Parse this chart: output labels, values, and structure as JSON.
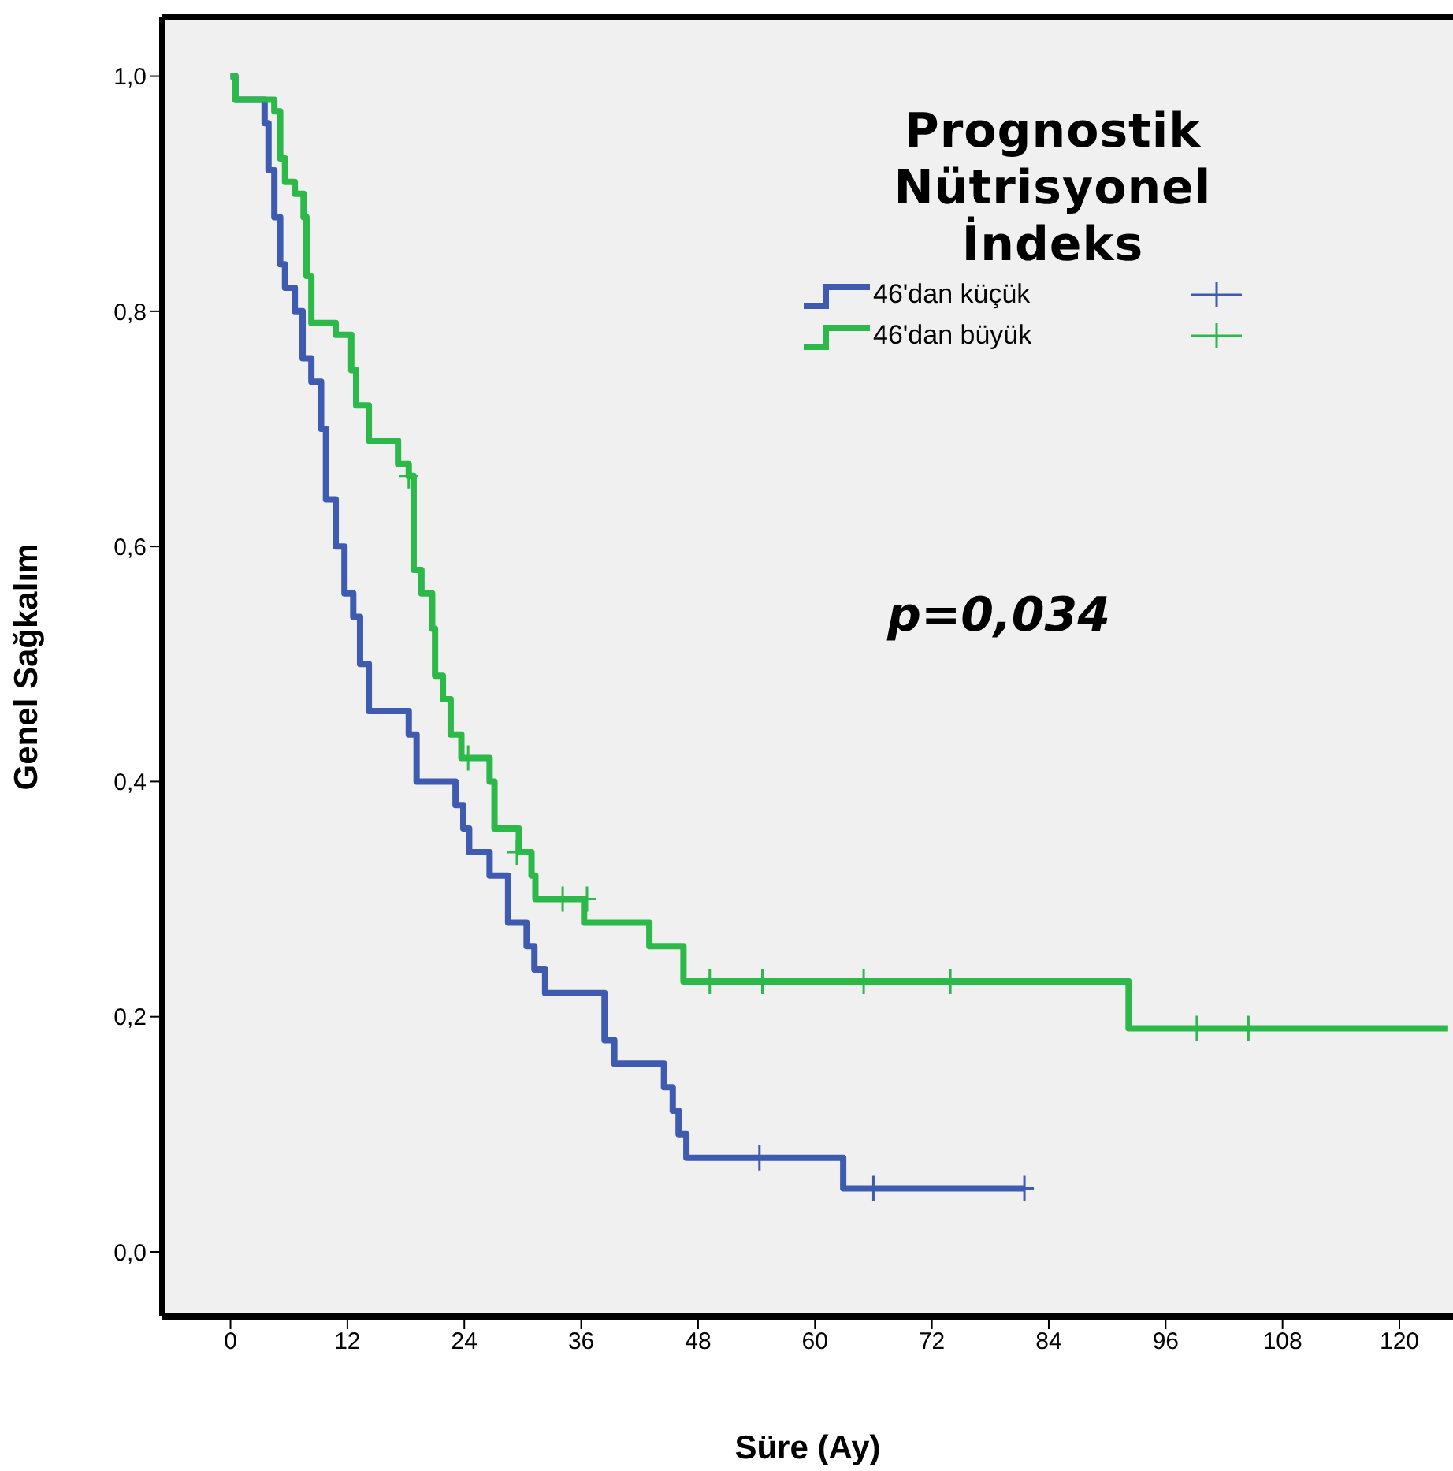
{
  "chart_data": {
    "type": "step",
    "legend_title": "Prognostik Nütrisyonel İndeks",
    "xlabel": "Süre (Ay)",
    "ylabel": "Genel Sağkalım",
    "annotations": [
      "p=0,034"
    ],
    "xlim": [
      -7,
      125.5
    ],
    "xticks": [
      0,
      12,
      24,
      36,
      48,
      60,
      72,
      84,
      96,
      108,
      120
    ],
    "ylim": [
      -0.055,
      1.05
    ],
    "yticks": [
      {
        "value": 0,
        "label": "0,0"
      },
      {
        "value": 0.2,
        "label": "0,2"
      },
      {
        "value": 0.4,
        "label": "0,4"
      },
      {
        "value": 0.6,
        "label": "0,6"
      },
      {
        "value": 0.8,
        "label": "0,8"
      },
      {
        "value": 1,
        "label": "1,0"
      }
    ],
    "grid": false,
    "legend": "top right",
    "line_style": "solid",
    "series": [
      {
        "name": "46'dan küçük",
        "color": "#3f5bb0",
        "x": [
          0,
          0.5,
          3.5,
          3.9,
          4.5,
          5.1,
          5.6,
          6.6,
          7.4,
          8.3,
          9.3,
          9.8,
          10.8,
          11.7,
          12.6,
          13.3,
          14.2,
          18.3,
          19.1,
          23.1,
          23.9,
          24.5,
          26.6,
          28.5,
          30.4,
          31.2,
          32.3,
          38.4,
          39.4,
          44.5,
          45.4,
          46,
          46.8,
          62.9,
          81.5
        ],
        "values": [
          1,
          0.98,
          0.96,
          0.92,
          0.88,
          0.84,
          0.82,
          0.8,
          0.76,
          0.74,
          0.7,
          0.64,
          0.6,
          0.56,
          0.54,
          0.5,
          0.46,
          0.44,
          0.4,
          0.38,
          0.36,
          0.34,
          0.32,
          0.28,
          0.26,
          0.24,
          0.22,
          0.18,
          0.16,
          0.14,
          0.12,
          0.1,
          0.08,
          0.054,
          0.054
        ]
      },
      {
        "name": "46'dan büyük",
        "color": "#2db84a",
        "x": [
          0,
          0.5,
          4.5,
          5.1,
          5.6,
          6.6,
          7.5,
          7.8,
          8.3,
          10.8,
          12.4,
          12.9,
          14.2,
          17.2,
          18.3,
          18.8,
          19.6,
          20.7,
          21,
          21.8,
          22.6,
          23.7,
          26.6,
          27.1,
          29.6,
          30.9,
          31.3,
          36.3,
          43,
          46.5,
          92.2,
          125
        ],
        "values": [
          1,
          0.98,
          0.97,
          0.93,
          0.91,
          0.9,
          0.88,
          0.83,
          0.79,
          0.78,
          0.75,
          0.72,
          0.69,
          0.67,
          0.66,
          0.58,
          0.56,
          0.53,
          0.49,
          0.47,
          0.44,
          0.42,
          0.4,
          0.36,
          0.34,
          0.32,
          0.3,
          0.28,
          0.26,
          0.23,
          0.19,
          0.19
        ]
      },
      {
        "type": "scatter",
        "marker": "cross",
        "color": "#3f5bb0",
        "x": [
          54.3,
          66,
          81.5
        ],
        "values": [
          0.08,
          0.054,
          0.054
        ]
      },
      {
        "type": "scatter",
        "marker": "cross",
        "color": "#2db84a",
        "x": [
          18.3,
          24.4,
          29.4,
          34.1,
          36.6,
          49.2,
          54.6,
          65,
          73.9,
          99.2,
          104.5
        ],
        "values": [
          0.66,
          0.42,
          0.34,
          0.3,
          0.3,
          0.23,
          0.23,
          0.23,
          0.23,
          0.19,
          0.19
        ]
      }
    ]
  }
}
